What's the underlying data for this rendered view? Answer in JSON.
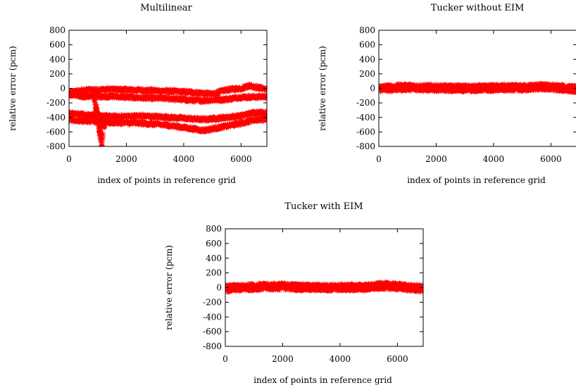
{
  "chart_data": [
    {
      "type": "scatter",
      "title": "Multilinear",
      "xlabel": "index of points in reference grid",
      "ylabel": "relative error (pcm)",
      "xlim": [
        0,
        6900
      ],
      "ylim": [
        -800,
        800
      ],
      "xticks": [
        "0",
        "2000",
        "4000",
        "6000"
      ],
      "yticks": [
        "800",
        "600",
        "400",
        "200",
        "0",
        "-200",
        "-400",
        "-600",
        "-800"
      ],
      "marker": "star",
      "color": "#ff0000",
      "grid": false,
      "series": [
        {
          "band": "upper",
          "x": [
            0,
            300,
            700,
            1500,
            2500,
            3500,
            4500,
            5000,
            5500,
            6000,
            6300,
            6600,
            6900
          ],
          "y": [
            -60,
            -40,
            -20,
            -15,
            -25,
            -40,
            -60,
            -80,
            -20,
            0,
            40,
            10,
            -10
          ]
        },
        {
          "band": "middle",
          "x": [
            0,
            500,
            1500,
            2500,
            3500,
            4500,
            5500,
            6000,
            6500,
            6900
          ],
          "y": [
            -90,
            -110,
            -110,
            -130,
            -140,
            -170,
            -150,
            -120,
            -120,
            -110
          ]
        },
        {
          "band": "lower-upper",
          "x": [
            0,
            600,
            1500,
            2500,
            3500,
            4700,
            5500,
            6000,
            6500,
            6900
          ],
          "y": [
            -350,
            -360,
            -390,
            -380,
            -400,
            -430,
            -400,
            -380,
            -330,
            -340
          ]
        },
        {
          "band": "lower",
          "x": [
            0,
            600,
            1500,
            2500,
            3500,
            4700,
            5500,
            6000,
            6500,
            6900
          ],
          "y": [
            -430,
            -450,
            -470,
            -480,
            -510,
            -580,
            -520,
            -480,
            -430,
            -420
          ]
        },
        {
          "band": "spike",
          "x": [
            850,
            950,
            1050,
            1150,
            1250
          ],
          "y": [
            -40,
            -300,
            -550,
            -750,
            -420
          ]
        }
      ]
    },
    {
      "type": "scatter",
      "title": "Tucker without EIM",
      "xlabel": "index of points in reference grid",
      "ylabel": "relative error (pcm)",
      "xlim": [
        0,
        6900
      ],
      "ylim": [
        -800,
        800
      ],
      "xticks": [
        "0",
        "2000",
        "4000",
        "6000"
      ],
      "yticks": [
        "800",
        "600",
        "400",
        "200",
        "0",
        "-200",
        "-400",
        "-600",
        "-800"
      ],
      "marker": "star",
      "color": "#ff0000",
      "grid": false,
      "series": [
        {
          "band": "band",
          "x": [
            0,
            1000,
            2000,
            3000,
            4000,
            5000,
            5500,
            6000,
            6500,
            6900
          ],
          "y": [
            0,
            15,
            5,
            0,
            5,
            5,
            20,
            15,
            0,
            -10
          ],
          "spread": 45
        }
      ]
    },
    {
      "type": "scatter",
      "title": "Tucker with EIM",
      "xlabel": "index of points in reference grid",
      "ylabel": "relative error (pcm)",
      "xlim": [
        0,
        6900
      ],
      "ylim": [
        -800,
        800
      ],
      "xticks": [
        "0",
        "2000",
        "4000",
        "6000"
      ],
      "yticks": [
        "800",
        "600",
        "400",
        "200",
        "0",
        "-200",
        "-400",
        "-600",
        "-800"
      ],
      "marker": "star",
      "color": "#ff0000",
      "grid": false,
      "series": [
        {
          "band": "band",
          "x": [
            0,
            1000,
            2000,
            3000,
            4000,
            5000,
            5500,
            6000,
            6500,
            6900
          ],
          "y": [
            -15,
            10,
            15,
            0,
            0,
            5,
            25,
            15,
            -5,
            -15
          ],
          "spread": 45
        }
      ]
    }
  ]
}
